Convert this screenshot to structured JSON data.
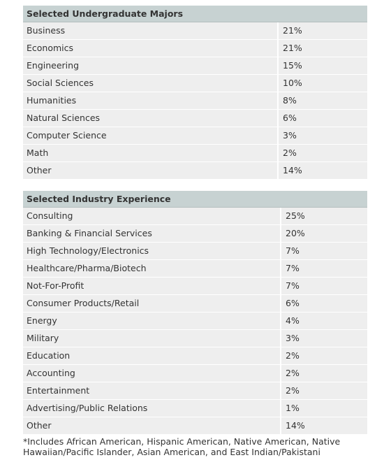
{
  "majors": {
    "title": "Selected Undergraduate Majors",
    "rows": [
      {
        "label": "Business",
        "value": "21%"
      },
      {
        "label": "Economics",
        "value": "21%"
      },
      {
        "label": "Engineering",
        "value": "15%"
      },
      {
        "label": "Social Sciences",
        "value": "10%"
      },
      {
        "label": "Humanities",
        "value": "8%"
      },
      {
        "label": "Natural Sciences",
        "value": "6%"
      },
      {
        "label": "Computer Science",
        "value": "3%"
      },
      {
        "label": "Math",
        "value": "2%"
      },
      {
        "label": "Other",
        "value": "14%"
      }
    ]
  },
  "industry": {
    "title": "Selected Industry Experience",
    "rows": [
      {
        "label": "Consulting",
        "value": "25%"
      },
      {
        "label": "Banking & Financial Services",
        "value": "20%"
      },
      {
        "label": "High Technology/Electronics",
        "value": "7%"
      },
      {
        "label": "Healthcare/Pharma/Biotech",
        "value": "7%"
      },
      {
        "label": "Not-For-Profit",
        "value": "7%"
      },
      {
        "label": "Consumer Products/Retail",
        "value": "6%"
      },
      {
        "label": "Energy",
        "value": "4%"
      },
      {
        "label": "Military",
        "value": "3%"
      },
      {
        "label": "Education",
        "value": "2%"
      },
      {
        "label": "Accounting",
        "value": "2%"
      },
      {
        "label": "Entertainment",
        "value": "2%"
      },
      {
        "label": "Advertising/Public Relations",
        "value": "1%"
      },
      {
        "label": "Other",
        "value": "14%"
      }
    ]
  },
  "footnote": {
    "line1": "*Includes African American, Hispanic American, Native American, Native",
    "line2": "Hawaiian/Pacific Islander, Asian American, and East Indian/Pakistani"
  },
  "colors": {
    "header_bg": "#c7d2d2",
    "row_bg": "#eeeeee",
    "text": "#333333"
  }
}
